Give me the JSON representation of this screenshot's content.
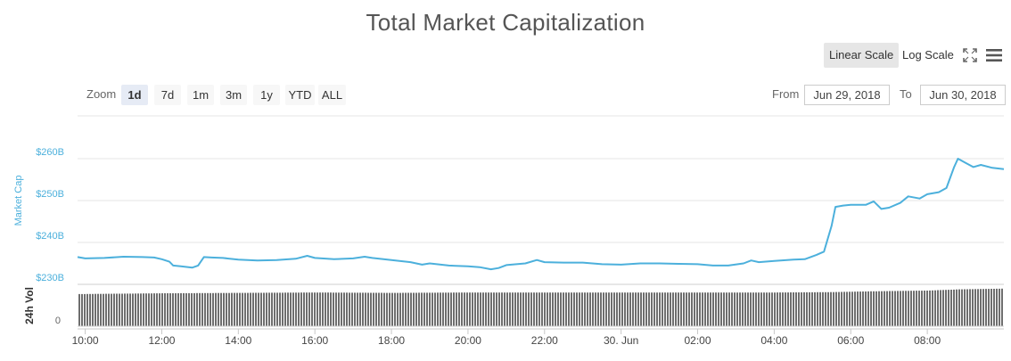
{
  "title": "Total Market Capitalization",
  "scale": {
    "linear_label": "Linear Scale",
    "log_label": "Log Scale",
    "active": "linear"
  },
  "toolbar": {
    "fullscreen_icon": "fullscreen-icon",
    "menu_icon": "menu-icon"
  },
  "zoom": {
    "label": "Zoom",
    "buttons": [
      "1d",
      "7d",
      "1m",
      "3m",
      "1y",
      "YTD",
      "ALL"
    ],
    "active": "1d"
  },
  "range": {
    "from_label": "From",
    "from_value": "Jun 29, 2018",
    "to_label": "To",
    "to_value": "Jun 30, 2018"
  },
  "colors": {
    "line": "#4cb0dc",
    "volume": "#6e6e6e",
    "grid": "#e6e6e6",
    "axis_label": "#4cb0dc"
  },
  "chart_data": [
    {
      "type": "line",
      "ylabel": "Market Cap",
      "yticks": [
        "$230B",
        "$240B",
        "$250B",
        "$260B"
      ],
      "ylim": [
        230,
        262
      ],
      "xlim": [
        9.8,
        34.0
      ],
      "xticks": [
        {
          "x": 10,
          "label": "10:00"
        },
        {
          "x": 12,
          "label": "12:00"
        },
        {
          "x": 14,
          "label": "14:00"
        },
        {
          "x": 16,
          "label": "16:00"
        },
        {
          "x": 18,
          "label": "18:00"
        },
        {
          "x": 20,
          "label": "20:00"
        },
        {
          "x": 22,
          "label": "22:00"
        },
        {
          "x": 24,
          "label": "30. Jun"
        },
        {
          "x": 26,
          "label": "02:00"
        },
        {
          "x": 28,
          "label": "04:00"
        },
        {
          "x": 30,
          "label": "06:00"
        },
        {
          "x": 32,
          "label": "08:00"
        }
      ],
      "series": [
        {
          "values": [
            [
              9.8,
              236.5
            ],
            [
              10.0,
              236.2
            ],
            [
              10.5,
              236.3
            ],
            [
              11.0,
              236.6
            ],
            [
              11.5,
              236.5
            ],
            [
              11.8,
              236.4
            ],
            [
              12.0,
              236.0
            ],
            [
              12.2,
              235.4
            ],
            [
              12.3,
              234.5
            ],
            [
              12.5,
              234.3
            ],
            [
              12.8,
              234.0
            ],
            [
              12.95,
              234.5
            ],
            [
              13.1,
              236.5
            ],
            [
              13.3,
              236.4
            ],
            [
              13.6,
              236.3
            ],
            [
              14.0,
              235.9
            ],
            [
              14.5,
              235.7
            ],
            [
              15.0,
              235.8
            ],
            [
              15.5,
              236.1
            ],
            [
              15.8,
              236.8
            ],
            [
              16.0,
              236.3
            ],
            [
              16.5,
              236.0
            ],
            [
              17.0,
              236.2
            ],
            [
              17.3,
              236.6
            ],
            [
              17.5,
              236.3
            ],
            [
              18.0,
              235.8
            ],
            [
              18.5,
              235.3
            ],
            [
              18.8,
              234.7
            ],
            [
              19.0,
              235.0
            ],
            [
              19.5,
              234.5
            ],
            [
              20.0,
              234.3
            ],
            [
              20.3,
              234.1
            ],
            [
              20.6,
              233.6
            ],
            [
              20.8,
              233.9
            ],
            [
              21.0,
              234.6
            ],
            [
              21.5,
              235.0
            ],
            [
              21.8,
              235.8
            ],
            [
              22.0,
              235.3
            ],
            [
              22.5,
              235.2
            ],
            [
              23.0,
              235.2
            ],
            [
              23.5,
              234.8
            ],
            [
              24.0,
              234.7
            ],
            [
              24.5,
              235.0
            ],
            [
              25.0,
              235.0
            ],
            [
              25.5,
              234.9
            ],
            [
              26.0,
              234.8
            ],
            [
              26.4,
              234.5
            ],
            [
              26.8,
              234.5
            ],
            [
              27.2,
              235.0
            ],
            [
              27.4,
              235.7
            ],
            [
              27.6,
              235.3
            ],
            [
              28.0,
              235.6
            ],
            [
              28.5,
              235.9
            ],
            [
              28.8,
              236.0
            ],
            [
              29.1,
              237.0
            ],
            [
              29.3,
              237.8
            ],
            [
              29.5,
              244.0
            ],
            [
              29.6,
              248.5
            ],
            [
              29.8,
              248.8
            ],
            [
              30.0,
              249.0
            ],
            [
              30.4,
              249.0
            ],
            [
              30.6,
              249.8
            ],
            [
              30.8,
              248.0
            ],
            [
              31.0,
              248.3
            ],
            [
              31.3,
              249.5
            ],
            [
              31.5,
              251.0
            ],
            [
              31.8,
              250.5
            ],
            [
              32.0,
              251.5
            ],
            [
              32.3,
              252.0
            ],
            [
              32.5,
              253.0
            ],
            [
              32.7,
              258.0
            ],
            [
              32.8,
              260.0
            ],
            [
              33.0,
              259.0
            ],
            [
              33.2,
              258.0
            ],
            [
              33.4,
              258.5
            ],
            [
              33.7,
              257.8
            ],
            [
              34.0,
              257.5
            ]
          ]
        }
      ]
    },
    {
      "type": "bar",
      "ylabel": "24h Vol",
      "yticks": [
        "0"
      ],
      "xlim": [
        9.8,
        34.0
      ],
      "series": [
        {
          "values": [
            [
              9.8,
              0.82
            ],
            [
              12.0,
              0.84
            ],
            [
              14.0,
              0.85
            ],
            [
              16.0,
              0.86
            ],
            [
              18.0,
              0.85
            ],
            [
              20.0,
              0.86
            ],
            [
              22.0,
              0.86
            ],
            [
              24.0,
              0.86
            ],
            [
              26.0,
              0.86
            ],
            [
              28.0,
              0.86
            ],
            [
              29.5,
              0.87
            ],
            [
              30.5,
              0.89
            ],
            [
              32.0,
              0.91
            ],
            [
              32.8,
              0.94
            ],
            [
              34.0,
              0.96
            ]
          ]
        }
      ]
    }
  ]
}
